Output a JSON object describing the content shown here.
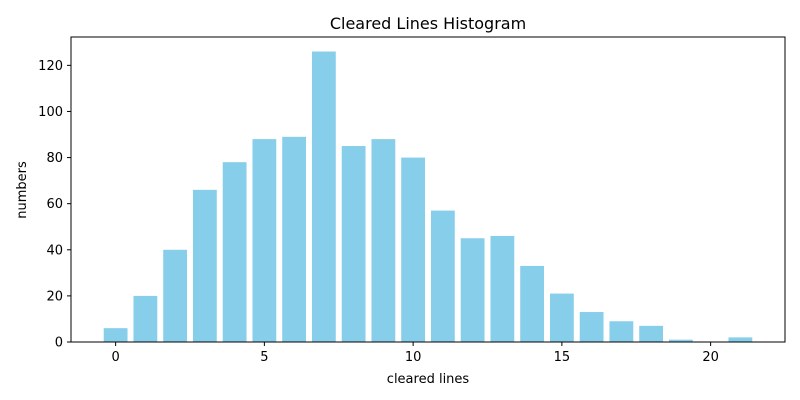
{
  "chart_data": {
    "type": "bar",
    "title": "Cleared Lines Histogram",
    "xlabel": "cleared lines",
    "ylabel": "numbers",
    "x": [
      0,
      1,
      2,
      3,
      4,
      5,
      6,
      7,
      8,
      9,
      10,
      11,
      12,
      13,
      14,
      15,
      16,
      17,
      18,
      19,
      20,
      21
    ],
    "values": [
      6,
      20,
      40,
      66,
      78,
      88,
      89,
      126,
      85,
      88,
      80,
      57,
      45,
      46,
      33,
      21,
      13,
      9,
      7,
      1,
      0,
      2
    ],
    "xlim": [
      -1.5,
      22.5
    ],
    "ylim": [
      0,
      132.3
    ],
    "xticks": [
      0,
      5,
      10,
      15,
      20
    ],
    "yticks": [
      0,
      20,
      40,
      60,
      80,
      100,
      120
    ],
    "grid": false,
    "bar_color": "#87ceeb"
  }
}
